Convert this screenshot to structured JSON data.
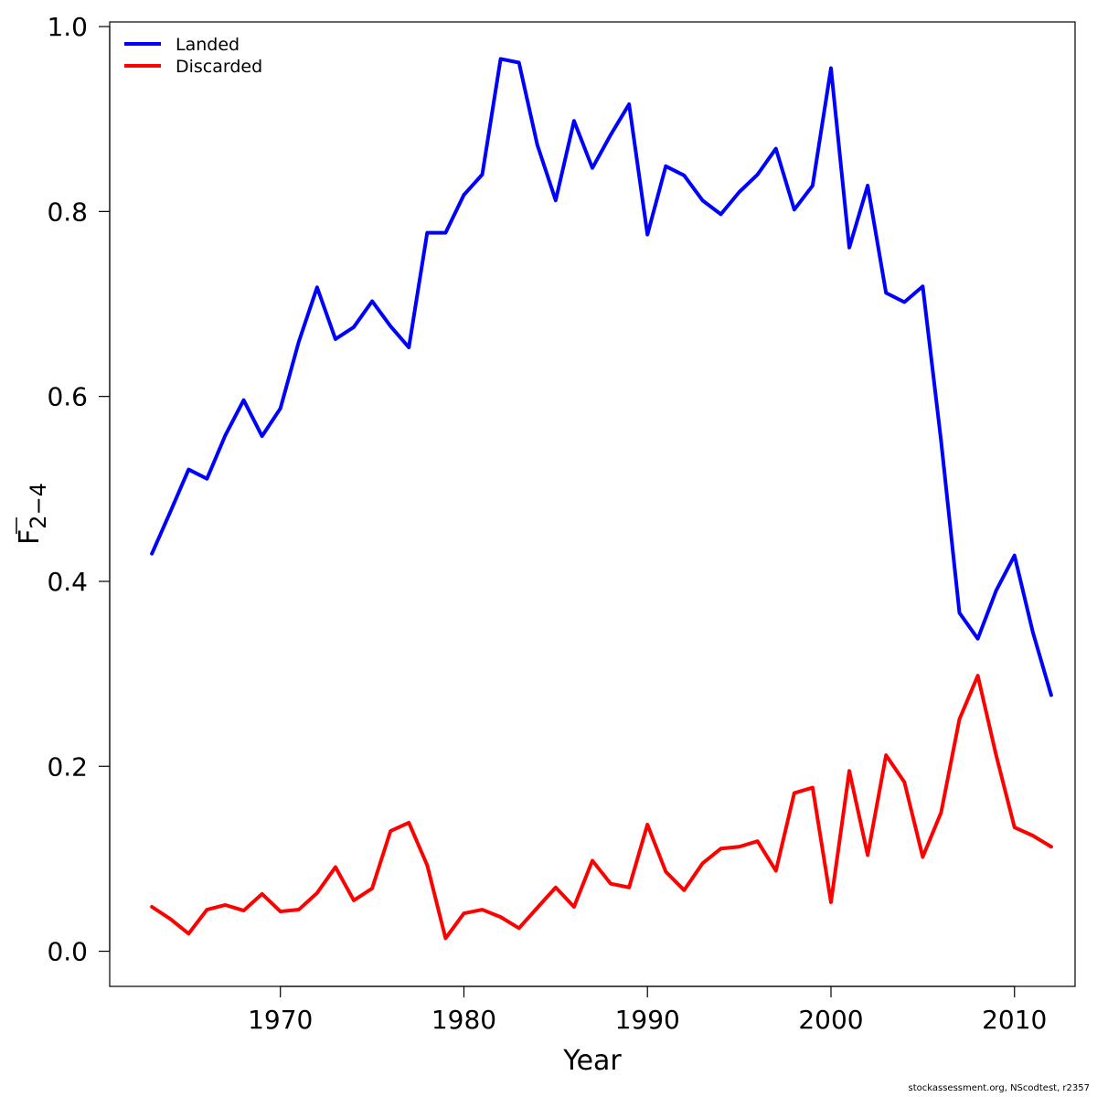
{
  "chart_data": {
    "type": "line",
    "xlabel": "Year",
    "ylabel_main": "F",
    "ylabel_sub": "2−4",
    "xlim": [
      1960.7,
      2013.3
    ],
    "ylim": [
      -0.038,
      1.005
    ],
    "x_ticks": [
      1970,
      1980,
      1990,
      2000,
      2010
    ],
    "y_ticks": [
      0.0,
      0.2,
      0.4,
      0.6,
      0.8,
      1.0
    ],
    "y_tick_labels": [
      "0.0",
      "0.2",
      "0.4",
      "0.6",
      "0.8",
      "1.0"
    ],
    "grid": false,
    "legend_position": "top-left",
    "x": [
      1963,
      1964,
      1965,
      1966,
      1967,
      1968,
      1969,
      1970,
      1971,
      1972,
      1973,
      1974,
      1975,
      1976,
      1977,
      1978,
      1979,
      1980,
      1981,
      1982,
      1983,
      1984,
      1985,
      1986,
      1987,
      1988,
      1989,
      1990,
      1991,
      1992,
      1993,
      1994,
      1995,
      1996,
      1997,
      1998,
      1999,
      2000,
      2001,
      2002,
      2003,
      2004,
      2005,
      2006,
      2007,
      2008,
      2009,
      2010,
      2011,
      2012
    ],
    "series": [
      {
        "name": "Landed",
        "color": "#0000ff",
        "values": [
          0.43,
          0.475,
          0.521,
          0.511,
          0.558,
          0.596,
          0.557,
          0.587,
          0.659,
          0.718,
          0.662,
          0.675,
          0.703,
          0.676,
          0.653,
          0.777,
          0.777,
          0.818,
          0.84,
          0.965,
          0.961,
          0.872,
          0.812,
          0.898,
          0.847,
          0.883,
          0.916,
          0.775,
          0.849,
          0.839,
          0.812,
          0.797,
          0.821,
          0.84,
          0.868,
          0.802,
          0.828,
          0.955,
          0.761,
          0.828,
          0.712,
          0.702,
          0.719,
          0.552,
          0.366,
          0.338,
          0.39,
          0.428,
          0.345,
          0.277
        ]
      },
      {
        "name": "Discarded",
        "color": "#ff0000",
        "values": [
          0.048,
          0.035,
          0.019,
          0.045,
          0.05,
          0.044,
          0.062,
          0.043,
          0.045,
          0.063,
          0.091,
          0.055,
          0.068,
          0.13,
          0.139,
          0.093,
          0.014,
          0.041,
          0.045,
          0.037,
          0.025,
          0.047,
          0.069,
          0.048,
          0.098,
          0.073,
          0.069,
          0.137,
          0.086,
          0.066,
          0.095,
          0.111,
          0.113,
          0.119,
          0.087,
          0.171,
          0.177,
          0.053,
          0.195,
          0.104,
          0.212,
          0.183,
          0.102,
          0.15,
          0.251,
          0.298,
          0.212,
          0.134,
          0.125,
          0.113
        ]
      }
    ]
  },
  "footer_text": "stockassessment.org, NScodtest, r2357"
}
